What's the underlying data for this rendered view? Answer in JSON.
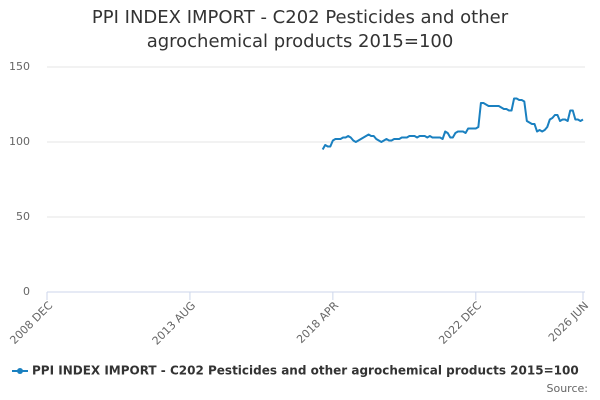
{
  "chart_data": {
    "type": "line",
    "title": "PPI INDEX IMPORT - C202 Pesticides and other agrochemical products 2015=100",
    "source": "Source:",
    "x": [
      "2017 DEC",
      "2018 JAN",
      "2018 FEB",
      "2018 MAR",
      "2018 APR",
      "2018 MAY",
      "2018 JUN",
      "2018 JUL",
      "2018 AUG",
      "2018 SEP",
      "2018 OCT",
      "2018 NOV",
      "2018 DEC",
      "2019 JAN",
      "2019 FEB",
      "2019 MAR",
      "2019 APR",
      "2019 MAY",
      "2019 JUN",
      "2019 JUL",
      "2019 AUG",
      "2019 SEP",
      "2019 OCT",
      "2019 NOV",
      "2019 DEC",
      "2020 JAN",
      "2020 FEB",
      "2020 MAR",
      "2020 APR",
      "2020 MAY",
      "2020 JUN",
      "2020 JUL",
      "2020 AUG",
      "2020 SEP",
      "2020 OCT",
      "2020 NOV",
      "2020 DEC",
      "2021 JAN",
      "2021 FEB",
      "2021 MAR",
      "2021 APR",
      "2021 MAY",
      "2021 JUN",
      "2021 JUL",
      "2021 AUG",
      "2021 SEP",
      "2021 OCT",
      "2021 NOV",
      "2021 DEC",
      "2022 JAN",
      "2022 FEB",
      "2022 MAR",
      "2022 APR",
      "2022 MAY",
      "2022 JUN",
      "2022 JUL",
      "2022 AUG",
      "2022 SEP",
      "2022 OCT",
      "2022 NOV",
      "2022 DEC",
      "2023 JAN",
      "2023 FEB",
      "2023 MAR",
      "2023 APR",
      "2023 MAY",
      "2023 JUN",
      "2023 JUL",
      "2023 AUG",
      "2023 SEP",
      "2023 OCT",
      "2023 NOV",
      "2023 DEC",
      "2024 JAN",
      "2024 FEB",
      "2024 MAR",
      "2024 APR",
      "2024 MAY",
      "2024 JUN",
      "2024 JUL",
      "2024 AUG",
      "2024 SEP",
      "2024 OCT",
      "2024 NOV",
      "2024 DEC",
      "2025 JAN",
      "2025 FEB",
      "2025 MAR",
      "2025 APR",
      "2025 MAY",
      "2025 JUN",
      "2025 JUL",
      "2025 AUG",
      "2025 SEP",
      "2025 OCT",
      "2025 NOV",
      "2025 DEC",
      "2026 JAN",
      "2026 FEB",
      "2026 MAR",
      "2026 APR",
      "2026 MAY",
      "2026 JUN"
    ],
    "series": [
      {
        "name": "PPI INDEX IMPORT - C202 Pesticides and other agrochemical products 2015=100",
        "color": "#1a80c0",
        "values": [
          95,
          98,
          97,
          97,
          101,
          102,
          102,
          102,
          103,
          103,
          104,
          103,
          101,
          100,
          101,
          102,
          103,
          104,
          105,
          104,
          104,
          102,
          101,
          100,
          101,
          102,
          101,
          101,
          102,
          102,
          102,
          103,
          103,
          103,
          104,
          104,
          104,
          103,
          104,
          104,
          104,
          103,
          104,
          103,
          103,
          103,
          103,
          102,
          107,
          106,
          103,
          103,
          106,
          107,
          107,
          107,
          106,
          109,
          109,
          109,
          109,
          110,
          126,
          126,
          125,
          124,
          124,
          124,
          124,
          124,
          123,
          122,
          122,
          121,
          121,
          129,
          129,
          128,
          128,
          127,
          114,
          113,
          112,
          112,
          107,
          108,
          107,
          108,
          110,
          115,
          116,
          118,
          118,
          114,
          115,
          115,
          114,
          121,
          121,
          115,
          115,
          114,
          115
        ]
      }
    ],
    "xlim": [
      "2008 DEC",
      "2026 JUN"
    ],
    "xticks": [
      "2008 DEC",
      "2013 AUG",
      "2018 APR",
      "2022 DEC",
      "2026 JUN"
    ],
    "ylim": [
      0,
      150
    ],
    "yticks": [
      0,
      50,
      100,
      150
    ],
    "grid": true
  }
}
